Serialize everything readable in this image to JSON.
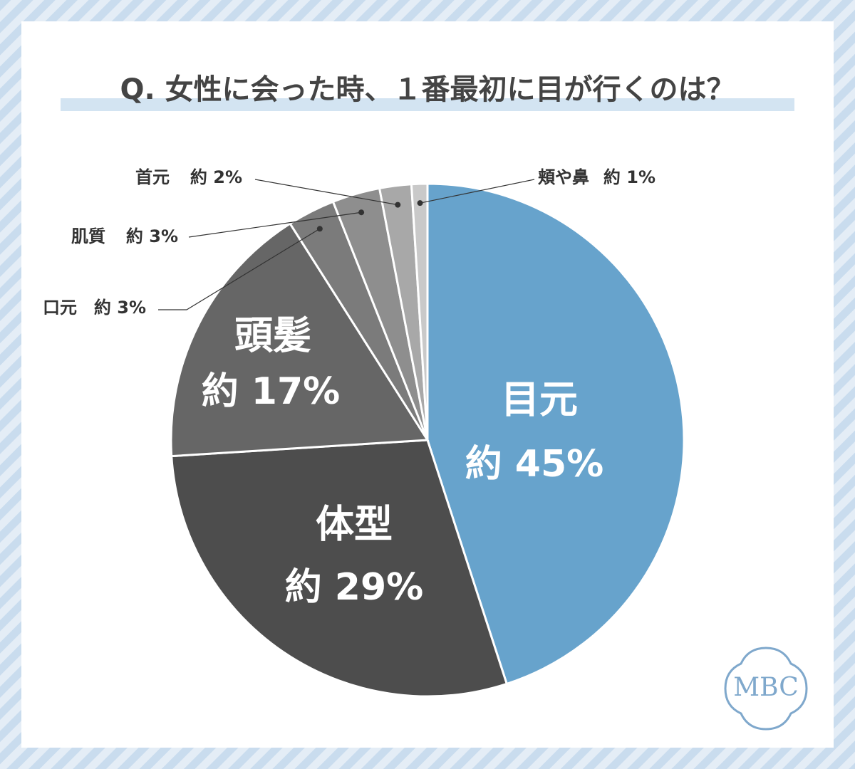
{
  "chart_data": {
    "type": "pie",
    "title": "Q. 女性に会った時、１番最初に目が行くのは？",
    "categories": [
      "目元",
      "体型",
      "頭髪",
      "口元",
      "肌質",
      "首元",
      "頬や鼻"
    ],
    "values": [
      45,
      29,
      17,
      3,
      3,
      2,
      1
    ],
    "value_labels": [
      "約 45%",
      "約 29%",
      "約 17%",
      "約 3%",
      "約 3%",
      "約 2%",
      "約 1%"
    ],
    "colors": [
      "#67a3cc",
      "#4d4d4d",
      "#666666",
      "#7b7b7b",
      "#8e8e8e",
      "#a8a8a8",
      "#c9c9c9"
    ]
  },
  "logo": "MBC"
}
